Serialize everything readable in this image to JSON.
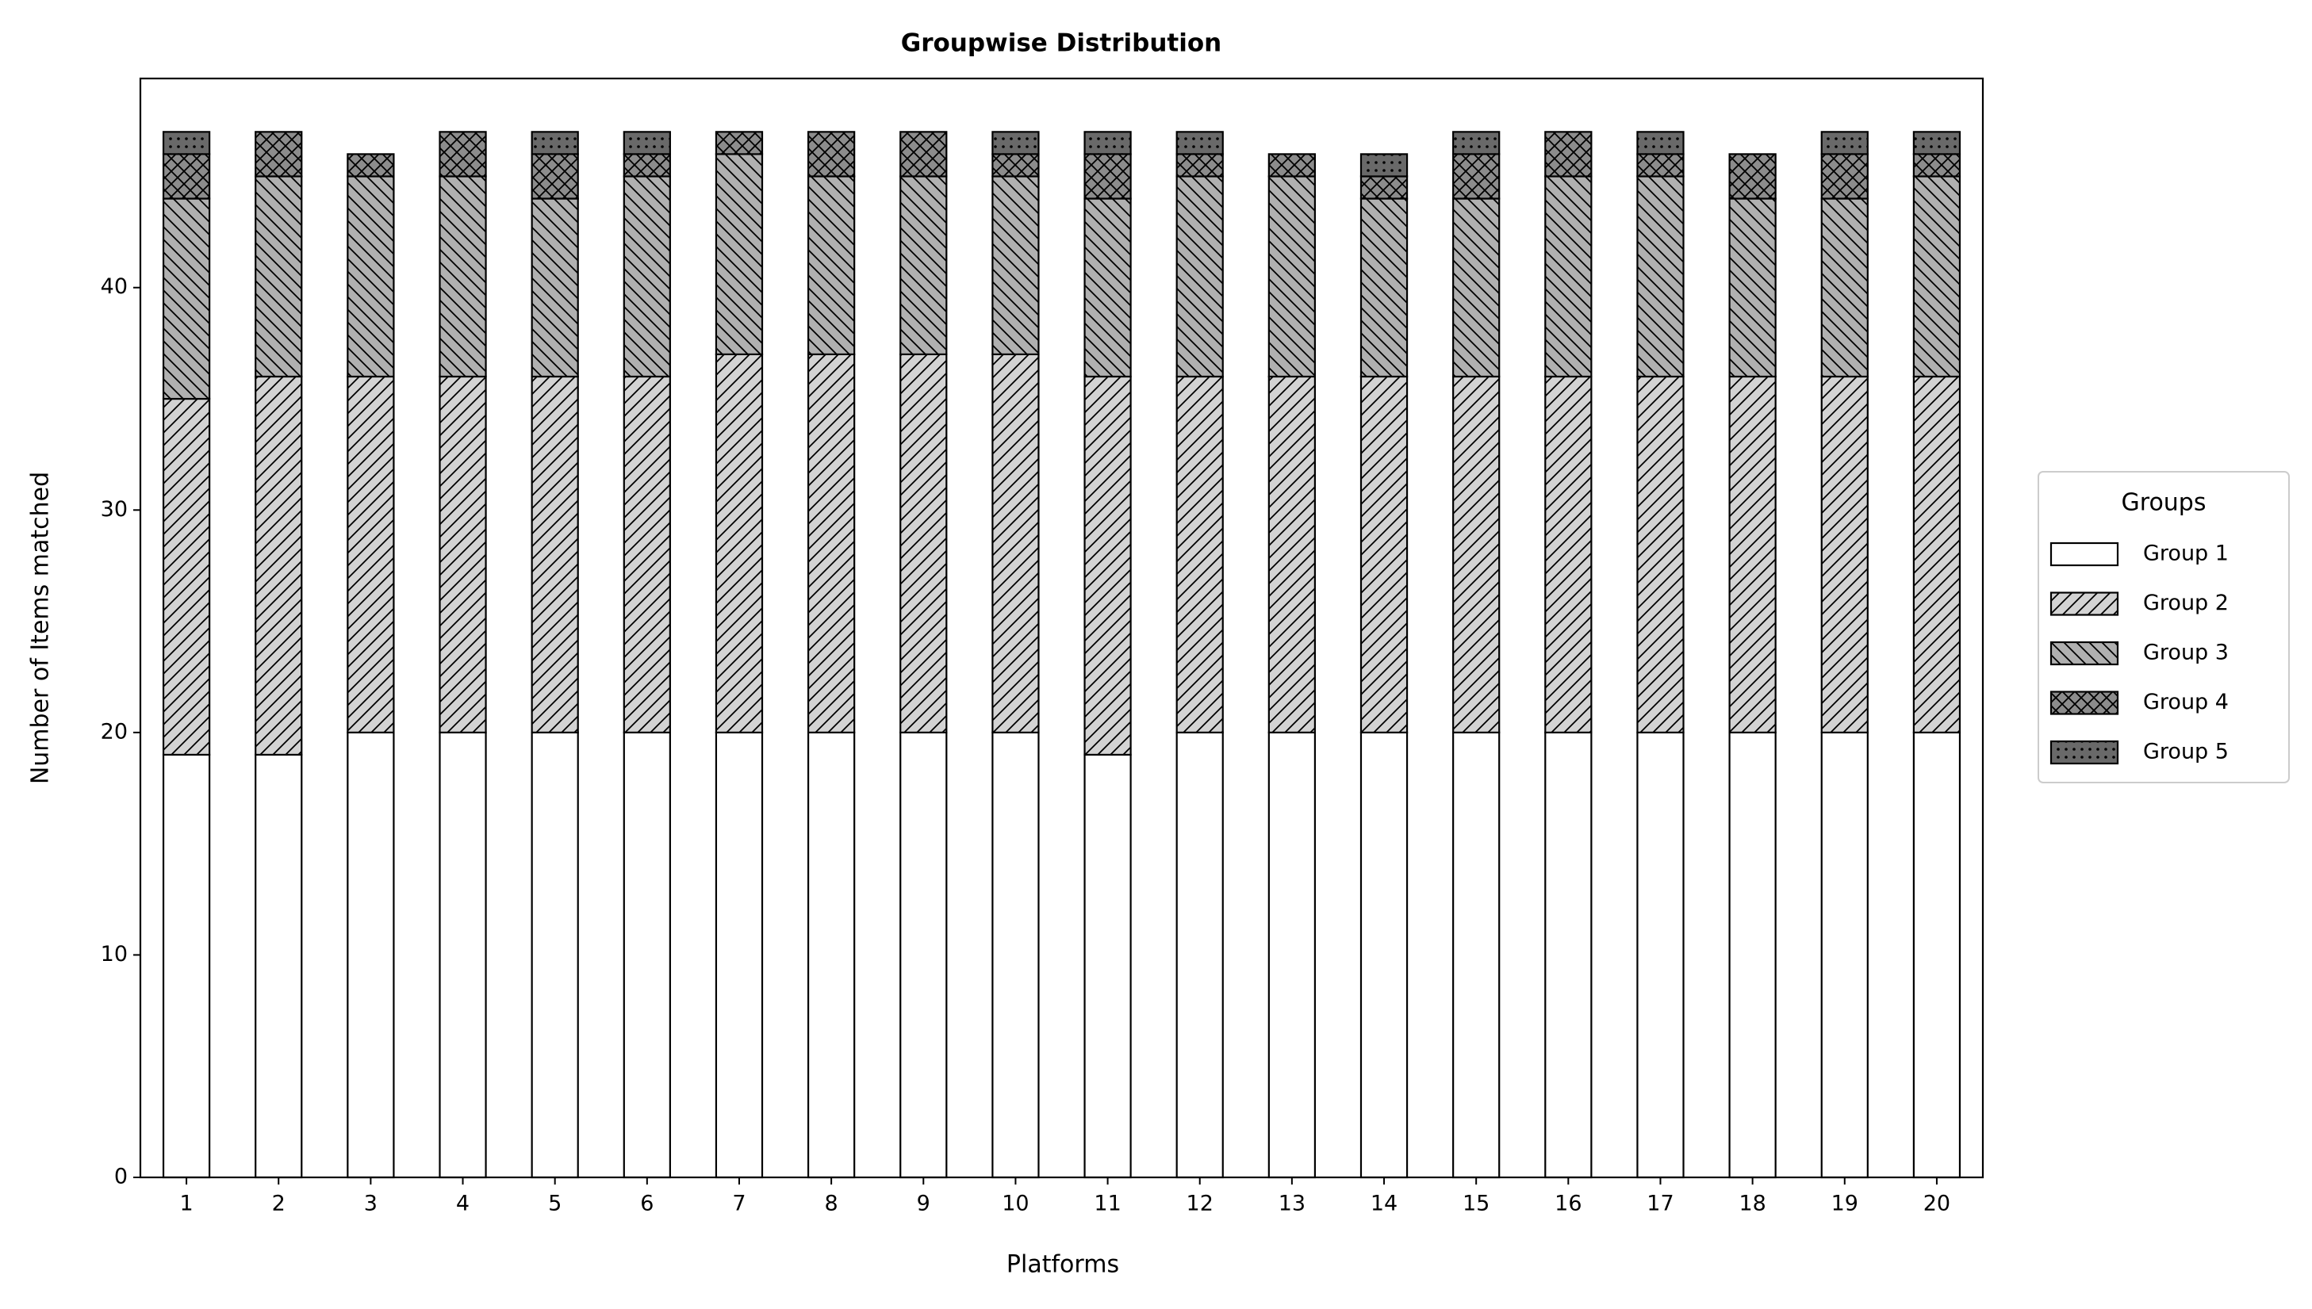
{
  "chart_data": {
    "type": "stacked_bar",
    "title": "Groupwise Distribution",
    "x_label": "Platforms",
    "y_label": "Number of Items matched",
    "categories": [
      "1",
      "2",
      "3",
      "4",
      "5",
      "6",
      "7",
      "8",
      "9",
      "10",
      "11",
      "12",
      "13",
      "14",
      "15",
      "16",
      "17",
      "18",
      "19",
      "20"
    ],
    "series": [
      {
        "name": "Group 1",
        "color": "#ffffff",
        "hatch": "",
        "values": [
          19,
          19,
          20,
          20,
          20,
          20,
          20,
          20,
          20,
          20,
          19,
          20,
          20,
          20,
          20,
          20,
          20,
          20,
          20,
          20
        ]
      },
      {
        "name": "Group 2",
        "color": "#d3d3d3",
        "hatch": "/",
        "values": [
          16,
          17,
          16,
          16,
          16,
          16,
          17,
          17,
          17,
          17,
          17,
          16,
          16,
          16,
          16,
          16,
          16,
          16,
          16,
          16
        ]
      },
      {
        "name": "Group 3",
        "color": "#b0b0b0",
        "hatch": "\\",
        "values": [
          9,
          9,
          9,
          9,
          8,
          9,
          9,
          8,
          8,
          8,
          8,
          9,
          9,
          8,
          8,
          9,
          9,
          8,
          8,
          9
        ]
      },
      {
        "name": "Group 4",
        "color": "#8c8c8c",
        "hatch": "x",
        "values": [
          2,
          2,
          1,
          2,
          2,
          1,
          1,
          2,
          2,
          1,
          2,
          1,
          1,
          1,
          2,
          2,
          1,
          2,
          2,
          1
        ]
      },
      {
        "name": "Group 5",
        "color": "#696969",
        "hatch": ".",
        "values": [
          1,
          0,
          0,
          0,
          1,
          1,
          0,
          0,
          0,
          1,
          1,
          1,
          0,
          1,
          1,
          0,
          1,
          0,
          1,
          1
        ]
      }
    ],
    "ylim": [
      0,
      49.4
    ],
    "yticks": [
      0,
      10,
      20,
      30,
      40
    ],
    "legend_title": "Groups",
    "legend_position": "right"
  }
}
